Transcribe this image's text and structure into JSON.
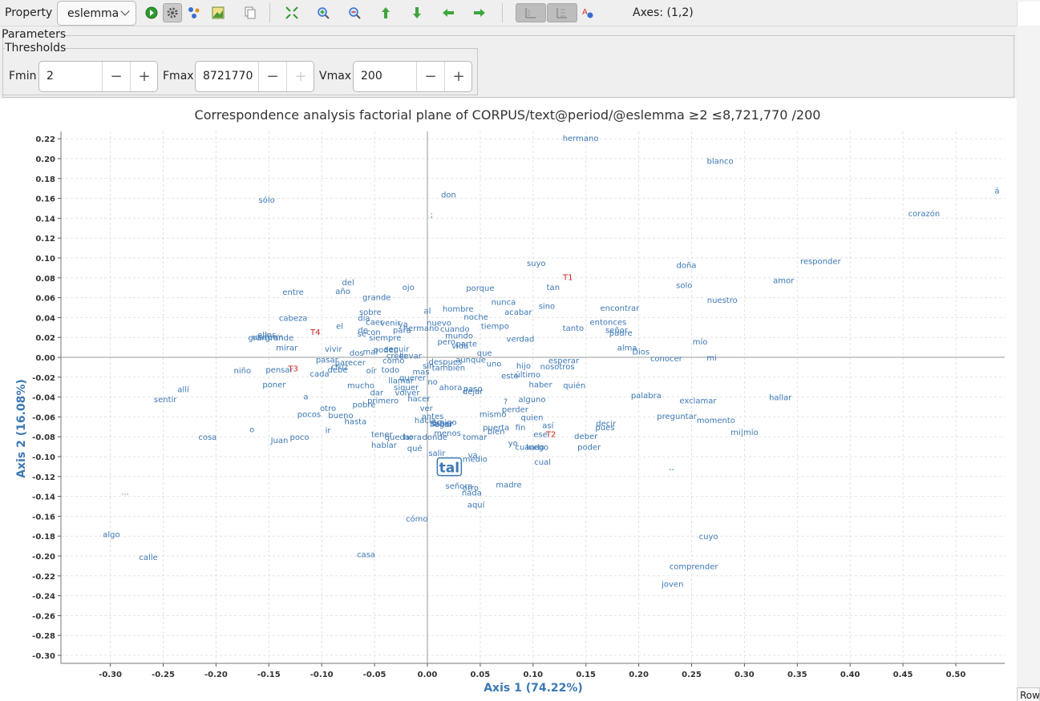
{
  "toolbar": {
    "property_label": "Property",
    "property_value": "eslemma",
    "axes_label": "Axes:",
    "axes_value": "(1,2)",
    "icons": [
      "run-icon",
      "settings-icon",
      "clusters-icon",
      "export-image-icon",
      "copy-icon",
      "fit-icon",
      "zoom-in-icon",
      "zoom-out-icon",
      "move-up-icon",
      "move-down-icon",
      "move-left-icon",
      "move-right-icon",
      "show-rows-icon",
      "show-cols-icon",
      "font-icon"
    ]
  },
  "parameters": {
    "title": "Parameters",
    "thresholds_title": "Thresholds",
    "fmin": {
      "label": "Fmin",
      "value": "2"
    },
    "fmax": {
      "label": "Fmax",
      "value": "8721770"
    },
    "vmax": {
      "label": "Vmax",
      "value": "200"
    }
  },
  "side_tab": {
    "label": "Row"
  },
  "colors": {
    "row_points": "#3c78b4",
    "col_points": "#cc1f1f",
    "axis_title": "#3c78b4",
    "toolbar_bg": "#efefef"
  },
  "chart_data": {
    "type": "scatter",
    "title": "Correspondence analysis factorial plane of CORPUS/text@period/@eslemma ≥2 ≤8,721,770 /200",
    "xlabel": "Axis 1 (74.22%)",
    "ylabel": "Axis 2 (16.08%)",
    "xlim": [
      -0.345,
      0.545
    ],
    "ylim": [
      -0.31,
      0.225
    ],
    "xticks": [
      -0.3,
      -0.25,
      -0.2,
      -0.15,
      -0.1,
      -0.05,
      0.0,
      0.05,
      0.1,
      0.15,
      0.2,
      0.25,
      0.3,
      0.35,
      0.4,
      0.45,
      0.5
    ],
    "yticks": [
      -0.3,
      -0.28,
      -0.26,
      -0.24,
      -0.22,
      -0.2,
      -0.18,
      -0.16,
      -0.14,
      -0.12,
      -0.1,
      -0.08,
      -0.06,
      -0.04,
      -0.02,
      0.0,
      0.02,
      0.04,
      0.06,
      0.08,
      0.1,
      0.12,
      0.14,
      0.16,
      0.18,
      0.2,
      0.22
    ],
    "grid": true,
    "selected_label": "tal",
    "columns": [
      {
        "label": "T1",
        "x": 0.133,
        "y": 0.081
      },
      {
        "label": "T2",
        "x": 0.117,
        "y": -0.077
      },
      {
        "label": "T3",
        "x": -0.127,
        "y": -0.011
      },
      {
        "label": "T4",
        "x": -0.106,
        "y": 0.026
      }
    ],
    "rows": [
      {
        "label": "tal",
        "x": 0.02,
        "y": -0.111
      },
      {
        "label": "hermano",
        "x": 0.145,
        "y": 0.221
      },
      {
        "label": "blanco",
        "x": 0.277,
        "y": 0.198
      },
      {
        "label": "á",
        "x": 0.539,
        "y": 0.168
      },
      {
        "label": "corazón",
        "x": 0.47,
        "y": 0.145
      },
      {
        "label": "sólo",
        "x": -0.152,
        "y": 0.159
      },
      {
        "label": "don",
        "x": 0.02,
        "y": 0.164
      },
      {
        "label": ";",
        "x": 0.004,
        "y": 0.144
      },
      {
        "label": "suyo",
        "x": 0.103,
        "y": 0.095
      },
      {
        "label": "doña",
        "x": 0.245,
        "y": 0.093
      },
      {
        "label": "responder",
        "x": 0.372,
        "y": 0.097
      },
      {
        "label": "amor",
        "x": 0.337,
        "y": 0.078
      },
      {
        "label": "solo",
        "x": 0.243,
        "y": 0.073
      },
      {
        "label": "tan",
        "x": 0.119,
        "y": 0.071
      },
      {
        "label": "porque",
        "x": 0.05,
        "y": 0.07
      },
      {
        "label": "ojo",
        "x": -0.018,
        "y": 0.071
      },
      {
        "label": "del",
        "x": -0.075,
        "y": 0.076
      },
      {
        "label": "año",
        "x": -0.08,
        "y": 0.067
      },
      {
        "label": "entre",
        "x": -0.127,
        "y": 0.066
      },
      {
        "label": "grande",
        "x": -0.048,
        "y": 0.061
      },
      {
        "label": "nuestro",
        "x": 0.279,
        "y": 0.058
      },
      {
        "label": "nunca",
        "x": 0.072,
        "y": 0.056
      },
      {
        "label": "sino",
        "x": 0.113,
        "y": 0.052
      },
      {
        "label": "acabar",
        "x": 0.086,
        "y": 0.046
      },
      {
        "label": "encontrar",
        "x": 0.182,
        "y": 0.05
      },
      {
        "label": "hombre",
        "x": 0.029,
        "y": 0.049
      },
      {
        "label": "noche",
        "x": 0.046,
        "y": 0.041
      },
      {
        "label": "al",
        "x": 0.0,
        "y": 0.047
      },
      {
        "label": "sobre",
        "x": -0.054,
        "y": 0.046
      },
      {
        "label": "cabeza",
        "x": -0.127,
        "y": 0.04
      },
      {
        "label": "entonces",
        "x": 0.171,
        "y": 0.036
      },
      {
        "label": "tiempo",
        "x": 0.064,
        "y": 0.032
      },
      {
        "label": "tanto",
        "x": 0.138,
        "y": 0.03
      },
      {
        "label": "señor",
        "x": 0.179,
        "y": 0.028
      },
      {
        "label": "padre",
        "x": 0.183,
        "y": 0.025
      },
      {
        "label": "mío",
        "x": 0.258,
        "y": 0.016
      },
      {
        "label": "alma",
        "x": 0.189,
        "y": 0.01
      },
      {
        "label": "Dios",
        "x": 0.202,
        "y": 0.006
      },
      {
        "label": "conocer",
        "x": 0.226,
        "y": -0.001
      },
      {
        "label": "mi",
        "x": 0.269,
        "y": 0.0
      },
      {
        "label": "verdad",
        "x": 0.088,
        "y": 0.019
      },
      {
        "label": "mundo",
        "x": 0.03,
        "y": 0.022
      },
      {
        "label": "pero",
        "x": 0.018,
        "y": 0.016
      },
      {
        "label": "parte",
        "x": 0.037,
        "y": 0.014
      },
      {
        "label": "vida",
        "x": 0.031,
        "y": 0.012
      },
      {
        "label": "que",
        "x": 0.054,
        "y": 0.005
      },
      {
        "label": "uno",
        "x": 0.063,
        "y": -0.006
      },
      {
        "label": "hijo",
        "x": 0.091,
        "y": -0.008
      },
      {
        "label": "nosotros",
        "x": 0.123,
        "y": -0.009
      },
      {
        "label": "esperar",
        "x": 0.129,
        "y": -0.003
      },
      {
        "label": "este",
        "x": 0.078,
        "y": -0.018
      },
      {
        "label": "último",
        "x": 0.095,
        "y": -0.017
      },
      {
        "label": "haber",
        "x": 0.107,
        "y": -0.027
      },
      {
        "label": "quién",
        "x": 0.139,
        "y": -0.028
      },
      {
        "label": "despues",
        "x": 0.017,
        "y": -0.004
      },
      {
        "label": "aunque",
        "x": 0.041,
        "y": -0.002
      },
      {
        "label": "también",
        "x": 0.02,
        "y": -0.01
      },
      {
        "label": "sin",
        "x": 0.001,
        "y": -0.008
      },
      {
        "label": "mas",
        "x": -0.006,
        "y": -0.014
      },
      {
        "label": "no",
        "x": 0.005,
        "y": -0.024
      },
      {
        "label": "ahora",
        "x": 0.022,
        "y": -0.03
      },
      {
        "label": "paso",
        "x": 0.043,
        "y": -0.031
      },
      {
        "label": "dejar",
        "x": 0.043,
        "y": -0.034
      },
      {
        "label": "alguno",
        "x": 0.099,
        "y": -0.042
      },
      {
        "label": "?",
        "x": 0.074,
        "y": -0.044
      },
      {
        "label": "perder",
        "x": 0.083,
        "y": -0.052
      },
      {
        "label": "mismo",
        "x": 0.062,
        "y": -0.057
      },
      {
        "label": "quien",
        "x": 0.099,
        "y": -0.06
      },
      {
        "label": "así",
        "x": 0.114,
        "y": -0.068
      },
      {
        "label": "fin",
        "x": 0.088,
        "y": -0.07
      },
      {
        "label": "decir",
        "x": 0.169,
        "y": -0.066
      },
      {
        "label": "pues",
        "x": 0.168,
        "y": -0.07
      },
      {
        "label": "deber",
        "x": 0.15,
        "y": -0.079
      },
      {
        "label": "poder",
        "x": 0.153,
        "y": -0.09
      },
      {
        "label": "ese",
        "x": 0.107,
        "y": -0.077
      },
      {
        "label": "puerta",
        "x": 0.065,
        "y": -0.07
      },
      {
        "label": "bien",
        "x": 0.065,
        "y": -0.074
      },
      {
        "label": "tomar",
        "x": 0.045,
        "y": -0.08
      },
      {
        "label": "yo",
        "x": 0.081,
        "y": -0.086
      },
      {
        "label": "cuando",
        "x": 0.097,
        "y": -0.09
      },
      {
        "label": "luego",
        "x": 0.104,
        "y": -0.09
      },
      {
        "label": "cual",
        "x": 0.109,
        "y": -0.105
      },
      {
        "label": "va",
        "x": 0.043,
        "y": -0.098
      },
      {
        "label": "medio",
        "x": 0.045,
        "y": -0.102
      },
      {
        "label": "salir",
        "x": 0.009,
        "y": -0.096
      },
      {
        "label": "madre",
        "x": 0.077,
        "y": -0.128
      },
      {
        "label": "señora",
        "x": 0.03,
        "y": -0.129
      },
      {
        "label": "otro",
        "x": 0.041,
        "y": -0.131
      },
      {
        "label": "nada",
        "x": 0.042,
        "y": -0.136
      },
      {
        "label": "aquí",
        "x": 0.046,
        "y": -0.148
      },
      {
        "label": "cómo",
        "x": -0.01,
        "y": -0.162
      },
      {
        "label": "casa",
        "x": -0.058,
        "y": -0.198
      },
      {
        "label": "menos",
        "x": 0.019,
        "y": -0.076
      },
      {
        "label": "donde",
        "x": 0.007,
        "y": -0.08
      },
      {
        "label": "hora",
        "x": -0.014,
        "y": -0.08
      },
      {
        "label": "qué",
        "x": -0.012,
        "y": -0.091
      },
      {
        "label": "hablar",
        "x": -0.041,
        "y": -0.088
      },
      {
        "label": "tener",
        "x": -0.043,
        "y": -0.077
      },
      {
        "label": "quedar",
        "x": -0.027,
        "y": -0.08
      },
      {
        "label": "hacia",
        "x": -0.002,
        "y": -0.063
      },
      {
        "label": "antes",
        "x": 0.005,
        "y": -0.059
      },
      {
        "label": "ver",
        "x": -0.001,
        "y": -0.051
      },
      {
        "label": "llegar",
        "x": 0.013,
        "y": -0.067
      },
      {
        "label": "saber",
        "x": 0.014,
        "y": -0.066
      },
      {
        "label": "amigo",
        "x": 0.016,
        "y": -0.065
      },
      {
        "label": "hacer",
        "x": -0.008,
        "y": -0.041
      },
      {
        "label": "volver",
        "x": -0.019,
        "y": -0.035
      },
      {
        "label": "querer",
        "x": -0.014,
        "y": -0.02
      },
      {
        "label": "llamar",
        "x": -0.025,
        "y": -0.023
      },
      {
        "label": "primero",
        "x": -0.042,
        "y": -0.043
      },
      {
        "label": "siguer",
        "x": -0.02,
        "y": -0.03
      },
      {
        "label": "dar",
        "x": -0.048,
        "y": -0.035
      },
      {
        "label": "mucho",
        "x": -0.063,
        "y": -0.028
      },
      {
        "label": "pobre",
        "x": -0.06,
        "y": -0.047
      },
      {
        "label": "hasta",
        "x": -0.068,
        "y": -0.064
      },
      {
        "label": "otro",
        "x": -0.094,
        "y": -0.051
      },
      {
        "label": "bueno",
        "x": -0.082,
        "y": -0.058
      },
      {
        "label": "pocos",
        "x": -0.112,
        "y": -0.057
      },
      {
        "label": "ir",
        "x": -0.094,
        "y": -0.073
      },
      {
        "label": "poco",
        "x": -0.121,
        "y": -0.08
      },
      {
        "label": "Juan",
        "x": -0.14,
        "y": -0.083
      },
      {
        "label": "o",
        "x": -0.166,
        "y": -0.072
      },
      {
        "label": "cosa",
        "x": -0.208,
        "y": -0.08
      },
      {
        "label": "a",
        "x": -0.115,
        "y": -0.039
      },
      {
        "label": "poner",
        "x": -0.145,
        "y": -0.027
      },
      {
        "label": "allí",
        "x": -0.231,
        "y": -0.032
      },
      {
        "label": "sentir",
        "x": -0.248,
        "y": -0.042
      },
      {
        "label": "niño",
        "x": -0.175,
        "y": -0.013
      },
      {
        "label": "pensar",
        "x": -0.14,
        "y": -0.012
      },
      {
        "label": "cada",
        "x": -0.102,
        "y": -0.016
      },
      {
        "label": "pasar",
        "x": -0.095,
        "y": -0.002
      },
      {
        "label": "cruz",
        "x": -0.083,
        "y": -0.009
      },
      {
        "label": "debe",
        "x": -0.085,
        "y": -0.012
      },
      {
        "label": "parecer",
        "x": -0.073,
        "y": -0.005
      },
      {
        "label": "oír",
        "x": -0.053,
        "y": -0.013
      },
      {
        "label": "todo",
        "x": -0.035,
        "y": -0.012
      },
      {
        "label": "como",
        "x": -0.032,
        "y": -0.003
      },
      {
        "label": "creer",
        "x": -0.029,
        "y": 0.002
      },
      {
        "label": "llevar",
        "x": -0.016,
        "y": 0.002
      },
      {
        "label": "seguir",
        "x": -0.029,
        "y": 0.009
      },
      {
        "label": "poder",
        "x": -0.04,
        "y": 0.008
      },
      {
        "label": "mal",
        "x": -0.054,
        "y": 0.006
      },
      {
        "label": "dos",
        "x": -0.067,
        "y": 0.005
      },
      {
        "label": "vivir",
        "x": -0.089,
        "y": 0.009
      },
      {
        "label": "mirar",
        "x": -0.133,
        "y": 0.01
      },
      {
        "label": "gran",
        "x": -0.161,
        "y": 0.02
      },
      {
        "label": "uniform",
        "x": -0.151,
        "y": 0.021
      },
      {
        "label": "grande",
        "x": -0.14,
        "y": 0.02
      },
      {
        "label": "ellos",
        "x": -0.152,
        "y": 0.023
      },
      {
        "label": "el",
        "x": -0.083,
        "y": 0.032
      },
      {
        "label": "de",
        "x": -0.061,
        "y": 0.028
      },
      {
        "label": "se",
        "x": -0.062,
        "y": 0.024
      },
      {
        "label": "con",
        "x": -0.051,
        "y": 0.026
      },
      {
        "label": "día",
        "x": -0.06,
        "y": 0.04
      },
      {
        "label": "caer",
        "x": -0.05,
        "y": 0.036
      },
      {
        "label": "venir",
        "x": -0.035,
        "y": 0.035
      },
      {
        "label": "ya",
        "x": -0.023,
        "y": 0.034
      },
      {
        "label": "para",
        "x": -0.024,
        "y": 0.028
      },
      {
        "label": "siempre",
        "x": -0.04,
        "y": 0.02
      },
      {
        "label": "hermano",
        "x": -0.006,
        "y": 0.03
      },
      {
        "label": "nuevo",
        "x": 0.011,
        "y": 0.035
      },
      {
        "label": "cuando",
        "x": 0.026,
        "y": 0.029
      },
      {
        "label": "palabra",
        "x": 0.207,
        "y": -0.038
      },
      {
        "label": "exclamar",
        "x": 0.256,
        "y": -0.043
      },
      {
        "label": "hallar",
        "x": 0.334,
        "y": -0.04
      },
      {
        "label": "preguntar",
        "x": 0.236,
        "y": -0.059
      },
      {
        "label": "momento",
        "x": 0.273,
        "y": -0.063
      },
      {
        "label": "mi|mío",
        "x": 0.3,
        "y": -0.075
      },
      {
        "label": "--",
        "x": 0.231,
        "y": -0.112
      },
      {
        "label": "cuyo",
        "x": 0.266,
        "y": -0.18
      },
      {
        "label": "comprender",
        "x": 0.252,
        "y": -0.21
      },
      {
        "label": "joven",
        "x": 0.232,
        "y": -0.228
      },
      {
        "label": "algo",
        "x": -0.299,
        "y": -0.178
      },
      {
        "label": "calle",
        "x": -0.264,
        "y": -0.201
      },
      {
        "label": "...",
        "x": -0.286,
        "y": -0.135
      }
    ]
  }
}
